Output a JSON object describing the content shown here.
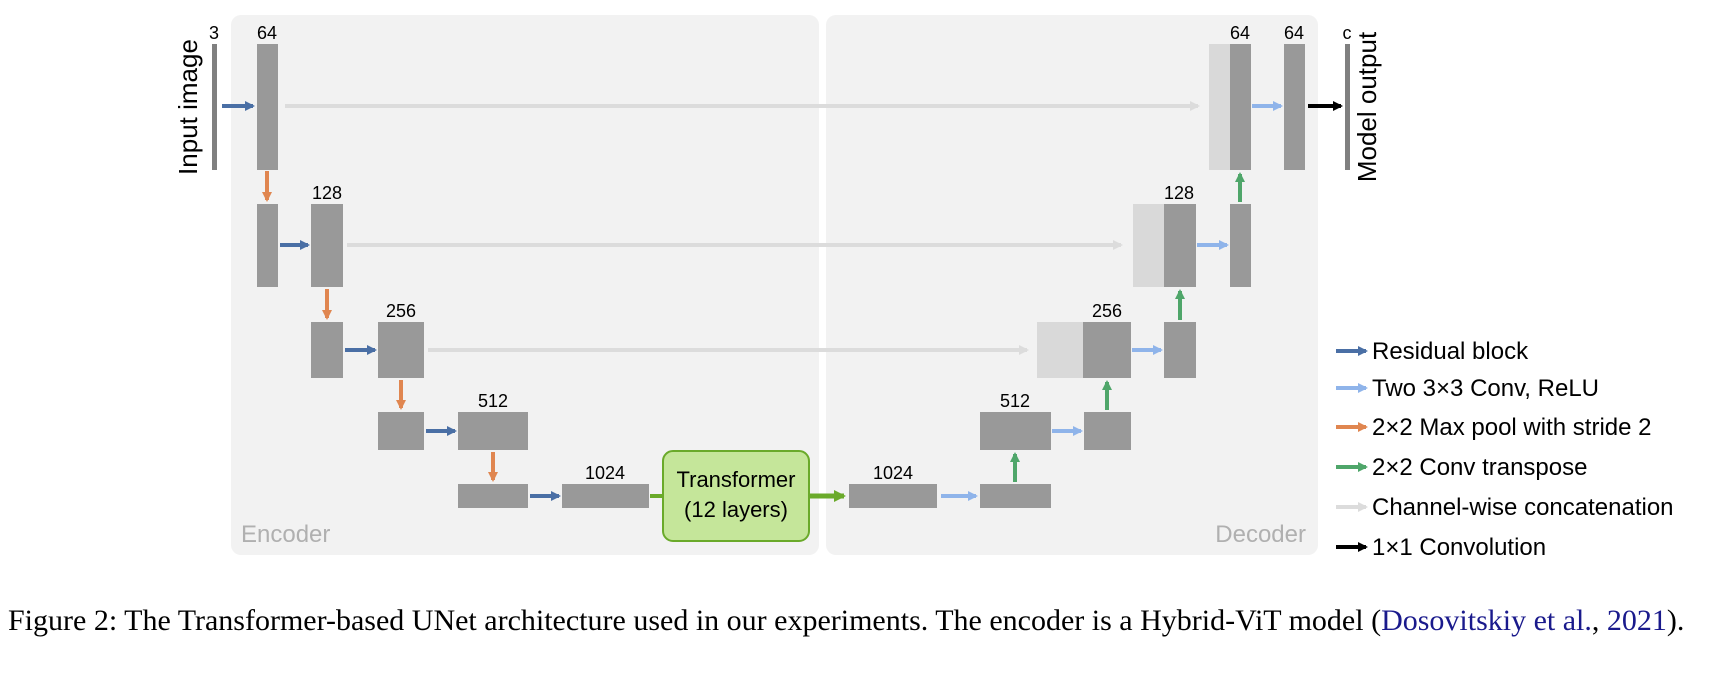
{
  "diagram": {
    "panels": {
      "encoder": "Encoder",
      "decoder": "Decoder"
    },
    "input_label": "Input image",
    "output_label": "Model output",
    "channel_labels": {
      "input": "3",
      "enc1": "64",
      "enc2": "128",
      "enc3": "256",
      "enc4": "512",
      "enc5": "1024",
      "dec5": "1024",
      "dec4": "512",
      "dec3": "256",
      "dec2": "128",
      "dec1": "64",
      "final": "64",
      "output": "c"
    },
    "transformer": {
      "line1": "Transformer",
      "line2": "(12 layers)"
    }
  },
  "legend": [
    {
      "label": "Residual block",
      "color": "#4a6fa5"
    },
    {
      "label": "Two 3×3 Conv, ReLU",
      "color": "#8fb4ea"
    },
    {
      "label": "2×2 Max pool with stride 2",
      "color": "#e08650"
    },
    {
      "label": "2×2 Conv transpose",
      "color": "#4fa66a"
    },
    {
      "label": "Channel-wise concatenation",
      "color": "#d6d6d6"
    },
    {
      "label": "1×1 Convolution",
      "color": "#000000"
    }
  ],
  "caption": {
    "prefix": "Figure 2: The Transformer-based UNet architecture used in our experiments. The encoder is a Hybrid-ViT model (",
    "cite_author": "Dosovitskiy et al.",
    "cite_sep": ", ",
    "cite_year": "2021",
    "suffix": ")."
  }
}
